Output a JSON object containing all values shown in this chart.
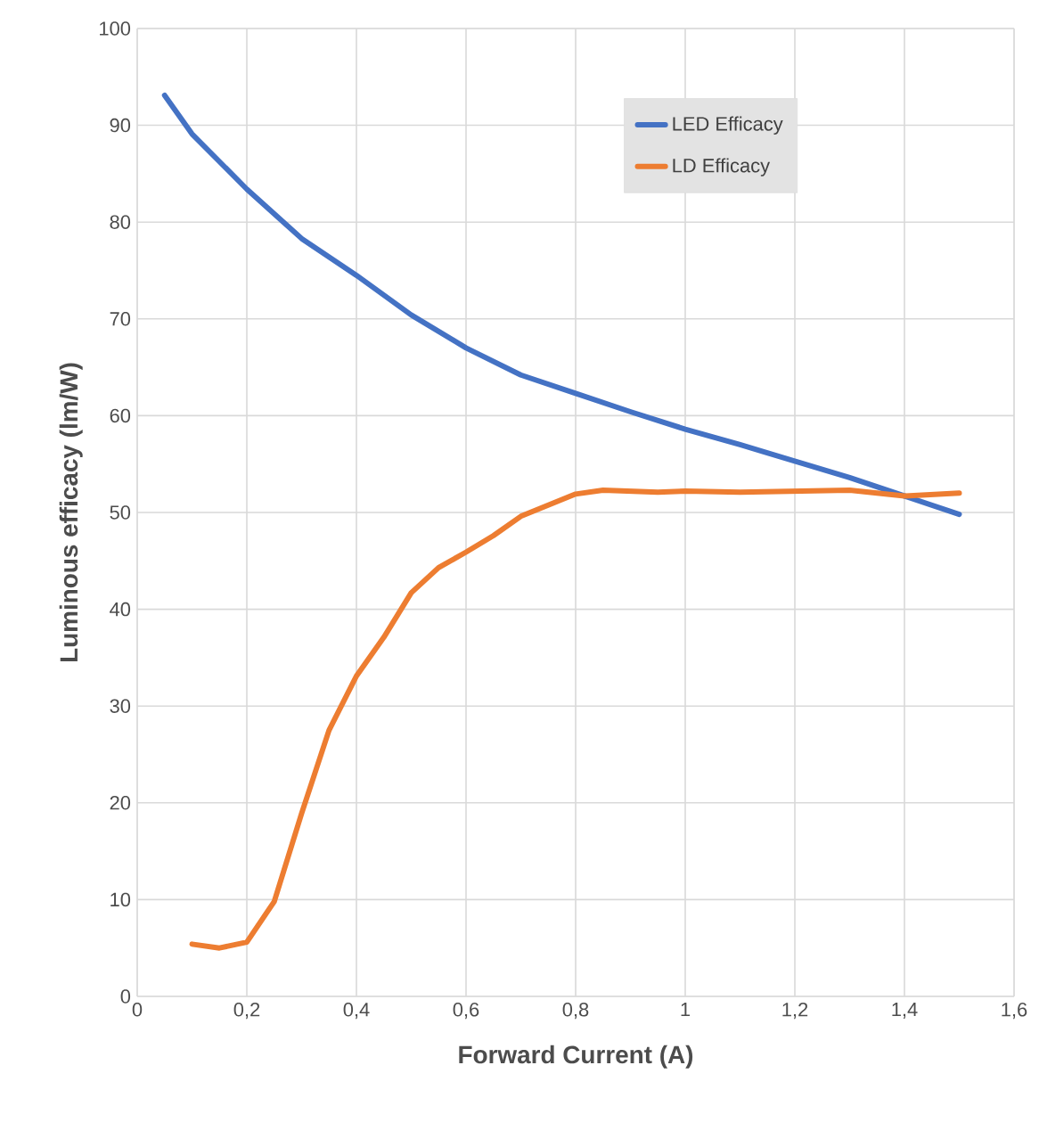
{
  "chart_data": {
    "type": "line",
    "xlabel": "Forward Current (A)",
    "ylabel": "Luminous efficacy (lm/W)",
    "xlim": [
      0,
      1.6
    ],
    "ylim": [
      0,
      100
    ],
    "xticks": [
      0,
      {
        "value": 0.2,
        "label": "0,2"
      },
      {
        "value": 0.4,
        "label": "0,4"
      },
      {
        "value": 0.6,
        "label": "0,6"
      },
      {
        "value": 0.8,
        "label": "0,8"
      },
      1,
      {
        "value": 1.2,
        "label": "1,2"
      },
      {
        "value": 1.4,
        "label": "1,4"
      },
      {
        "value": 1.6,
        "label": "1,6"
      }
    ],
    "yticks": [
      0,
      10,
      20,
      30,
      40,
      50,
      60,
      70,
      80,
      90,
      100
    ],
    "grid": true,
    "legend": "top right",
    "marker": "none",
    "line_style": "solid",
    "series": [
      {
        "name": "LED Efficacy",
        "color": "#4472c4",
        "x": [
          0.05,
          0.1,
          0.2,
          0.3,
          0.4,
          0.5,
          0.6,
          0.7,
          0.8,
          0.9,
          1.0,
          1.1,
          1.2,
          1.3,
          1.4,
          1.5
        ],
        "values": [
          93.1,
          89.1,
          83.4,
          78.3,
          74.5,
          70.4,
          67.0,
          64.2,
          62.3,
          60.4,
          58.6,
          57.0,
          55.3,
          53.6,
          51.7,
          49.8
        ]
      },
      {
        "name": "LD Efficacy",
        "color": "#ed7d31",
        "x": [
          0.1,
          0.15,
          0.2,
          0.25,
          0.3,
          0.35,
          0.4,
          0.45,
          0.5,
          0.55,
          0.6,
          0.65,
          0.7,
          0.8,
          0.85,
          0.95,
          1.0,
          1.1,
          1.2,
          1.3,
          1.4,
          1.5
        ],
        "values": [
          5.4,
          5.0,
          5.6,
          9.8,
          18.9,
          27.5,
          33.1,
          37.1,
          41.7,
          44.3,
          45.9,
          47.6,
          49.6,
          51.9,
          52.3,
          52.1,
          52.2,
          52.1,
          52.2,
          52.3,
          51.7,
          52.0
        ]
      }
    ]
  }
}
